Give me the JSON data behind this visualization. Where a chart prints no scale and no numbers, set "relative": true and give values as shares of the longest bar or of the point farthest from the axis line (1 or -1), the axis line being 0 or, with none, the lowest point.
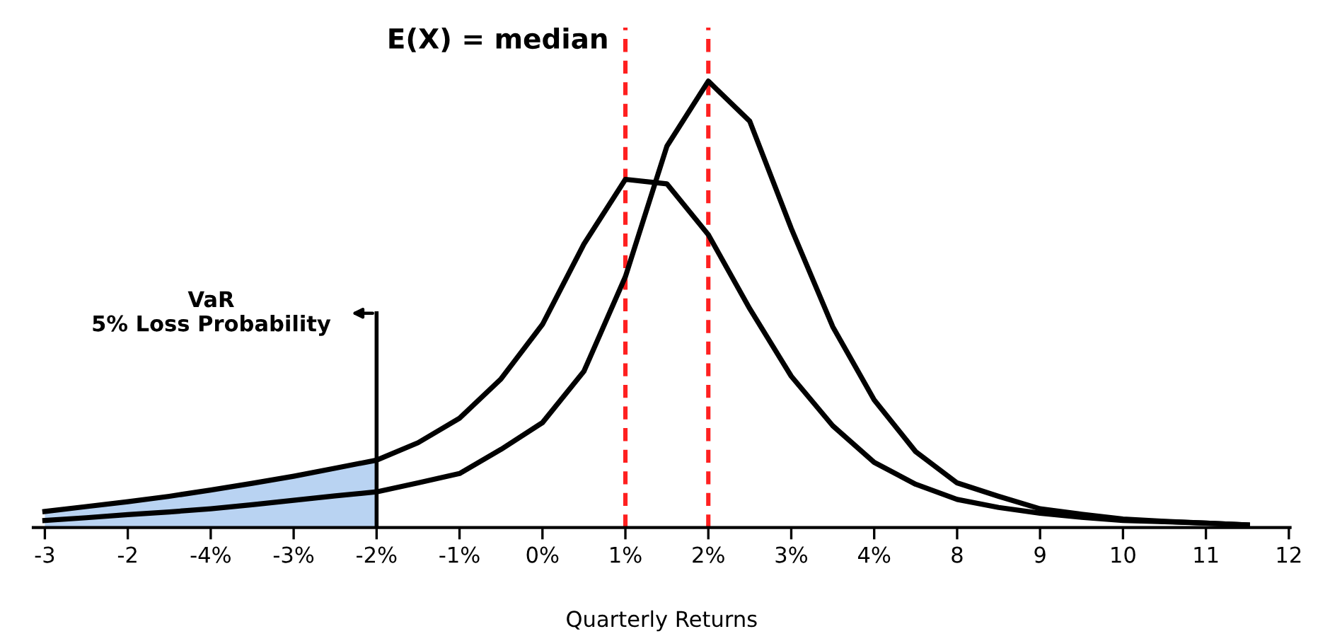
{
  "chart_data": {
    "type": "line",
    "relative": true,
    "xlabel": "Quarterly Returns",
    "categories": [
      "-3",
      null,
      "-2",
      null,
      "-4%",
      null,
      "-3%",
      null,
      "-2%",
      null,
      "-1%",
      null,
      "0%",
      null,
      "1%",
      null,
      "2%",
      null,
      "3%",
      null,
      "4%",
      null,
      "8",
      null,
      "9",
      null,
      "10",
      null,
      "11",
      null,
      "12"
    ],
    "tick_labels": "x",
    "grid": false,
    "legend": false,
    "line_style": "solid",
    "marker": "none",
    "series": [
      {
        "type": "area",
        "color": "#b9d3f2",
        "values": [
          0.036,
          0.047,
          0.058,
          0.07,
          0.084,
          0.099,
          0.115,
          0.133,
          0.151,
          null,
          null,
          null,
          null,
          null,
          null,
          null,
          null,
          null,
          null,
          null,
          null,
          null,
          null,
          null,
          null,
          null,
          null,
          null,
          null,
          null,
          null
        ]
      },
      {
        "color": "#000000",
        "values": [
          0.036,
          0.047,
          0.058,
          0.07,
          0.084,
          0.099,
          0.115,
          0.133,
          0.151,
          0.19,
          0.245,
          0.333,
          0.455,
          0.635,
          0.78,
          0.77,
          0.656,
          0.49,
          0.339,
          0.228,
          0.146,
          0.097,
          0.063,
          0.045,
          0.032,
          0.023,
          0.016,
          0.013,
          0.01,
          0.006,
          null
        ]
      },
      {
        "color": "#000000",
        "values": [
          0.016,
          0.022,
          0.029,
          0.035,
          0.042,
          0.051,
          0.061,
          0.071,
          0.08,
          0.1,
          0.121,
          0.175,
          0.235,
          0.35,
          0.562,
          0.854,
          1,
          0.91,
          0.67,
          0.45,
          0.286,
          0.17,
          0.1,
          0.07,
          0.042,
          0.03,
          0.019,
          0.014,
          0.01,
          0.006,
          null
        ]
      }
    ],
    "ref_lines": [
      {
        "axis": "x",
        "value": "1%",
        "color": "#ff2020",
        "line_style": "dashed",
        "label": "E(X) = median"
      },
      {
        "axis": "x",
        "value": "2%",
        "color": "#ff2020",
        "line_style": "dashed"
      },
      {
        "axis": "x",
        "value": "-2%",
        "color": "#000000",
        "line_style": "solid",
        "label": "VaR\n5% Loss Probability"
      }
    ]
  }
}
